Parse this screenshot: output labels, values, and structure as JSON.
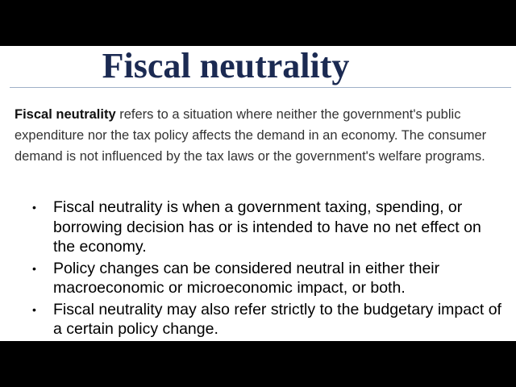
{
  "slide": {
    "title": "Fiscal neutrality",
    "definition": {
      "term": "Fiscal neutrality",
      "text": " refers to a situation where neither the government's public expenditure nor the tax policy affects the demand in an economy. The consumer demand is not influenced by the tax laws or the government's welfare programs."
    },
    "bullets": [
      "Fiscal neutrality is when a government taxing, spending, or borrowing decision has or is intended to have no net effect on the economy.",
      "Policy changes can be considered neutral in either their macroeconomic or microeconomic impact, or both.",
      "Fiscal neutrality may also refer strictly to the budgetary impact of a certain policy change."
    ],
    "bullet_glyph": "•",
    "colors": {
      "title": "#1b2a52",
      "letterbox": "#000000",
      "background": "#ffffff"
    }
  }
}
